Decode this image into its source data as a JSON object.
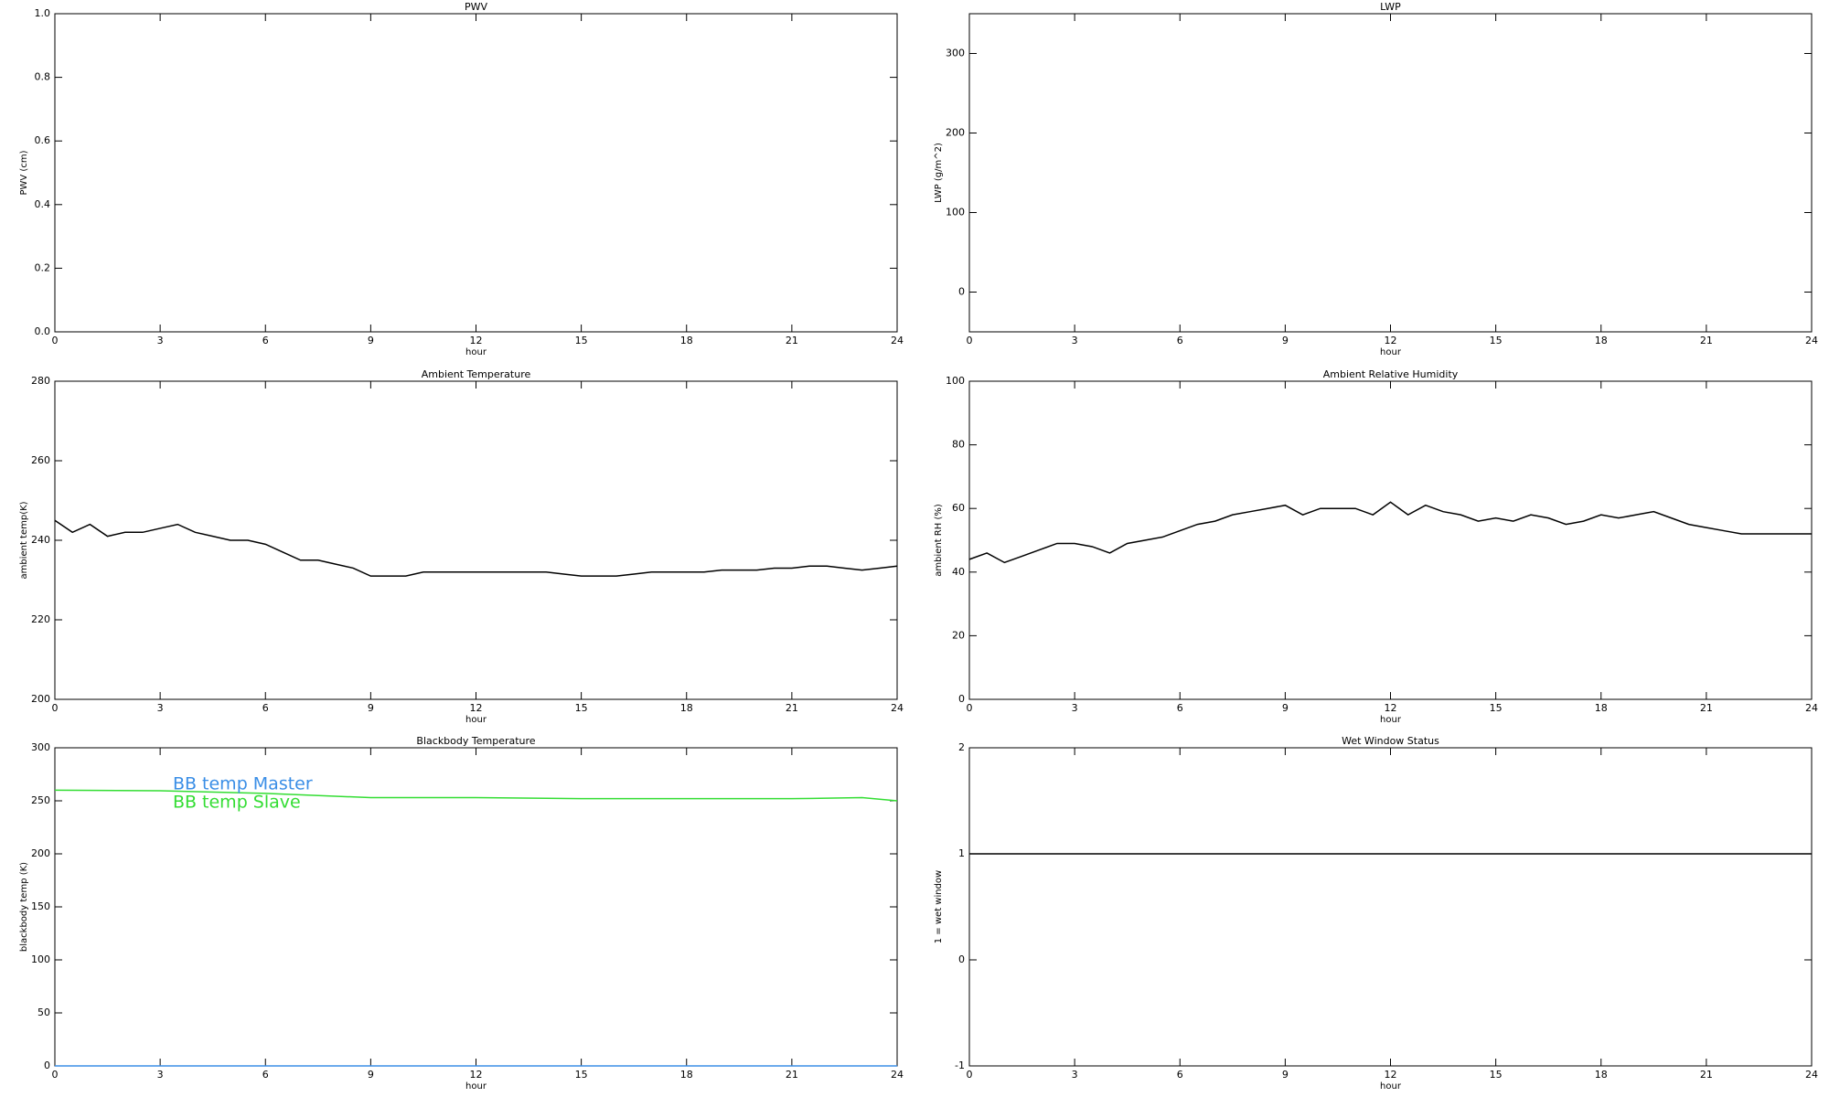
{
  "chart_data": [
    {
      "type": "line",
      "title": "PWV",
      "xlabel": "hour",
      "ylabel": "PWV (cm)",
      "xlim": [
        0,
        24
      ],
      "xticks": [
        0,
        3,
        6,
        9,
        12,
        15,
        18,
        21,
        24
      ],
      "ylim": [
        0,
        1
      ],
      "yticks": [
        {
          "value": 0,
          "label": "0.0"
        },
        0.2,
        0.4,
        0.6,
        0.8,
        {
          "value": 1,
          "label": "1.0"
        }
      ]
    },
    {
      "type": "line",
      "title": "LWP",
      "xlabel": "hour",
      "ylabel": "LWP (g/m^2)",
      "xlim": [
        0,
        24
      ],
      "xticks": [
        0,
        3,
        6,
        9,
        12,
        15,
        18,
        21,
        24
      ],
      "ylim": [
        -50,
        350
      ],
      "yticks": [
        0,
        100,
        200,
        300
      ]
    },
    {
      "type": "line",
      "title": "Ambient Temperature",
      "xlabel": "hour",
      "ylabel": "ambient temp(K)",
      "xlim": [
        0,
        24
      ],
      "xticks": [
        0,
        3,
        6,
        9,
        12,
        15,
        18,
        21,
        24
      ],
      "ylim": [
        200,
        280
      ],
      "yticks": [
        200,
        220,
        240,
        260,
        280
      ],
      "x": [
        0,
        0.5,
        1,
        1.5,
        2,
        2.5,
        3,
        3.5,
        4,
        4.5,
        5,
        5.5,
        6,
        6.5,
        7,
        7.5,
        8,
        8.5,
        9,
        9.5,
        10,
        10.5,
        11,
        11.5,
        12,
        12.5,
        13,
        13.5,
        14,
        14.5,
        15,
        15.5,
        16,
        16.5,
        17,
        17.5,
        18,
        18.5,
        19,
        19.5,
        20,
        20.5,
        21,
        21.5,
        22,
        22.5,
        23,
        23.5,
        24
      ],
      "series": [
        {
          "color": "#000000",
          "values": [
            245,
            242,
            244,
            241,
            242,
            242,
            243,
            244,
            242,
            241,
            240,
            240,
            239,
            237,
            235,
            235,
            234,
            233,
            231,
            231,
            231,
            232,
            232,
            232,
            232,
            232,
            232,
            232,
            232,
            231.5,
            231,
            231,
            231,
            231.5,
            232,
            232,
            232,
            232,
            232.5,
            232.5,
            232.5,
            233,
            233,
            233.5,
            233.5,
            233,
            232.5,
            233,
            233.5
          ]
        }
      ]
    },
    {
      "type": "line",
      "title": "Ambient Relative Humidity",
      "xlabel": "hour",
      "ylabel": "ambient RH (%)",
      "xlim": [
        0,
        24
      ],
      "xticks": [
        0,
        3,
        6,
        9,
        12,
        15,
        18,
        21,
        24
      ],
      "ylim": [
        0,
        100
      ],
      "yticks": [
        0,
        20,
        40,
        60,
        80,
        100
      ],
      "x": [
        0,
        0.5,
        1,
        1.5,
        2,
        2.5,
        3,
        3.5,
        4,
        4.5,
        5,
        5.5,
        6,
        6.5,
        7,
        7.5,
        8,
        8.5,
        9,
        9.5,
        10,
        10.5,
        11,
        11.5,
        12,
        12.5,
        13,
        13.5,
        14,
        14.5,
        15,
        15.5,
        16,
        16.5,
        17,
        17.5,
        18,
        18.5,
        19,
        19.5,
        20,
        20.5,
        21,
        21.5,
        22,
        22.5,
        23,
        23.5,
        24
      ],
      "series": [
        {
          "color": "#000000",
          "values": [
            44,
            46,
            43,
            45,
            47,
            49,
            49,
            48,
            46,
            49,
            50,
            51,
            53,
            55,
            56,
            58,
            59,
            60,
            61,
            58,
            60,
            60,
            60,
            58,
            62,
            58,
            61,
            59,
            58,
            56,
            57,
            56,
            58,
            57,
            55,
            56,
            58,
            57,
            58,
            59,
            57,
            55,
            54,
            53,
            52,
            52,
            52,
            52,
            52
          ]
        }
      ]
    },
    {
      "type": "line",
      "title": "Blackbody Temperature",
      "xlabel": "hour",
      "ylabel": "blackbody temp (K)",
      "xlim": [
        0,
        24
      ],
      "xticks": [
        0,
        3,
        6,
        9,
        12,
        15,
        18,
        21,
        24
      ],
      "ylim": [
        0,
        300
      ],
      "yticks": [
        0,
        50,
        100,
        150,
        200,
        250,
        300
      ],
      "legend": "upper-left",
      "x": [
        0,
        3,
        6,
        9,
        12,
        15,
        18,
        21,
        23,
        24
      ],
      "series": [
        {
          "name": "BB temp Master",
          "color": "#3a8ee6",
          "values": [
            0,
            0,
            0,
            0,
            0,
            0,
            0,
            0,
            0,
            0
          ]
        },
        {
          "name": "BB temp Slave",
          "color": "#33dd33",
          "values": [
            260,
            259.5,
            257,
            253,
            253,
            252,
            252,
            252,
            253,
            250
          ]
        }
      ]
    },
    {
      "type": "line",
      "title": "Wet Window Status",
      "xlabel": "hour",
      "ylabel": "1 = wet window",
      "xlim": [
        0,
        24
      ],
      "xticks": [
        0,
        3,
        6,
        9,
        12,
        15,
        18,
        21,
        24
      ],
      "ylim": [
        -1,
        2
      ],
      "yticks": [
        -1,
        0,
        1,
        2
      ],
      "x": [
        0,
        24
      ],
      "series": [
        {
          "color": "#000000",
          "values": [
            1,
            1
          ]
        }
      ]
    }
  ]
}
